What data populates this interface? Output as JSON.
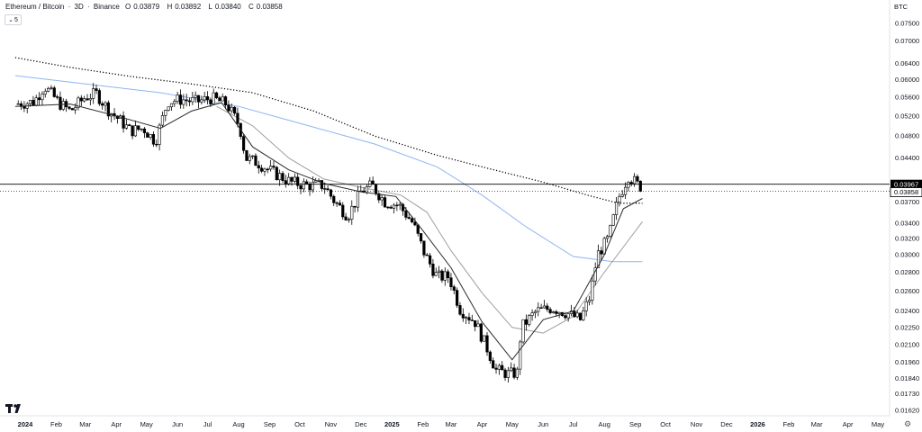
{
  "header": {
    "symbol": "Ethereum / Bitcoin",
    "interval": "3D",
    "exchange": "Binance",
    "open_label": "O",
    "open": "0.03879",
    "high_label": "H",
    "high": "0.03892",
    "low_label": "L",
    "low": "0.03840",
    "close_label": "C",
    "close": "0.03858",
    "dot": "·"
  },
  "indicator_toggle": {
    "icon": "chevron-down-icon",
    "count": "5"
  },
  "currency": "BTC",
  "logo": "TV",
  "colors": {
    "up_candle": "#ffffff",
    "down_candle": "#000000",
    "candle_border": "#000000",
    "ma_short": "#2a2a2a",
    "ma_mid": "#9e9e9e",
    "ma_long_blue": "#90b4f0",
    "ma_dotted": "#000000",
    "price_line": "#000000"
  },
  "chart_data": {
    "type": "candlestick",
    "title": "Ethereum / Bitcoin · 3D · Binance",
    "price_axis": {
      "scale": "log",
      "ylim": [
        0.0162,
        0.081
      ],
      "ticks": [
        "0.07500",
        "0.07000",
        "0.06400",
        "0.06000",
        "0.05600",
        "0.05200",
        "0.04800",
        "0.04400",
        "0.03700",
        "0.03400",
        "0.03200",
        "0.03000",
        "0.02800",
        "0.02600",
        "0.02400",
        "0.02250",
        "0.02100",
        "0.01960",
        "0.01840",
        "0.01730",
        "0.01620"
      ],
      "labels": [
        {
          "text": "0.03967",
          "value": 0.03967,
          "style": "black"
        },
        {
          "text": "0.03858",
          "value": 0.03858,
          "style": "outline"
        }
      ]
    },
    "time_axis": {
      "ticks": [
        {
          "label": "2024",
          "date": "2024-01-01",
          "bold": true
        },
        {
          "label": "Feb",
          "date": "2024-02-01"
        },
        {
          "label": "Mar",
          "date": "2024-03-01"
        },
        {
          "label": "Apr",
          "date": "2024-04-01"
        },
        {
          "label": "May",
          "date": "2024-05-01"
        },
        {
          "label": "Jun",
          "date": "2024-06-01"
        },
        {
          "label": "Jul",
          "date": "2024-07-01"
        },
        {
          "label": "Aug",
          "date": "2024-08-01"
        },
        {
          "label": "Sep",
          "date": "2024-09-01"
        },
        {
          "label": "Oct",
          "date": "2024-10-01"
        },
        {
          "label": "Nov",
          "date": "2024-11-01"
        },
        {
          "label": "Dec",
          "date": "2024-12-01"
        },
        {
          "label": "2025",
          "date": "2025-01-01",
          "bold": true
        },
        {
          "label": "Feb",
          "date": "2025-02-01"
        },
        {
          "label": "Mar",
          "date": "2025-03-01"
        },
        {
          "label": "Apr",
          "date": "2025-04-01"
        },
        {
          "label": "May",
          "date": "2025-05-01"
        },
        {
          "label": "Jun",
          "date": "2025-06-01"
        },
        {
          "label": "Jul",
          "date": "2025-07-01"
        },
        {
          "label": "Aug",
          "date": "2025-08-01"
        },
        {
          "label": "Sep",
          "date": "2025-09-01"
        },
        {
          "label": "Oct",
          "date": "2025-10-01"
        },
        {
          "label": "Nov",
          "date": "2025-11-01"
        },
        {
          "label": "Dec",
          "date": "2025-12-01"
        },
        {
          "label": "2026",
          "date": "2026-01-01",
          "bold": true
        },
        {
          "label": "Feb",
          "date": "2026-02-01"
        },
        {
          "label": "Mar",
          "date": "2026-03-01"
        },
        {
          "label": "Apr",
          "date": "2026-04-01"
        },
        {
          "label": "May",
          "date": "2026-05-01"
        }
      ]
    },
    "close_path": [
      [
        "2023-12-22",
        0.0545
      ],
      [
        "2024-01-10",
        0.055
      ],
      [
        "2024-01-20",
        0.0585
      ],
      [
        "2024-02-05",
        0.0545
      ],
      [
        "2024-02-15",
        0.053
      ],
      [
        "2024-03-01",
        0.056
      ],
      [
        "2024-03-12",
        0.0568
      ],
      [
        "2024-03-25",
        0.053
      ],
      [
        "2024-04-05",
        0.051
      ],
      [
        "2024-04-15",
        0.049
      ],
      [
        "2024-04-28",
        0.0495
      ],
      [
        "2024-05-10",
        0.047
      ],
      [
        "2024-05-22",
        0.055
      ],
      [
        "2024-06-05",
        0.0555
      ],
      [
        "2024-06-20",
        0.055
      ],
      [
        "2024-07-05",
        0.0558
      ],
      [
        "2024-07-20",
        0.0545
      ],
      [
        "2024-08-02",
        0.05
      ],
      [
        "2024-08-08",
        0.044
      ],
      [
        "2024-08-20",
        0.0432
      ],
      [
        "2024-09-05",
        0.0415
      ],
      [
        "2024-09-22",
        0.04
      ],
      [
        "2024-10-08",
        0.0395
      ],
      [
        "2024-10-25",
        0.0395
      ],
      [
        "2024-11-05",
        0.037
      ],
      [
        "2024-11-18",
        0.035
      ],
      [
        "2024-12-01",
        0.0385
      ],
      [
        "2024-12-12",
        0.0395
      ],
      [
        "2024-12-25",
        0.037
      ],
      [
        "2025-01-08",
        0.0365
      ],
      [
        "2025-01-22",
        0.034
      ],
      [
        "2025-02-03",
        0.03
      ],
      [
        "2025-02-15",
        0.0275
      ],
      [
        "2025-02-27",
        0.0275
      ],
      [
        "2025-03-10",
        0.0242
      ],
      [
        "2025-03-25",
        0.023
      ],
      [
        "2025-04-06",
        0.0207
      ],
      [
        "2025-04-15",
        0.019
      ],
      [
        "2025-04-28",
        0.0187
      ],
      [
        "2025-05-06",
        0.0188
      ],
      [
        "2025-05-10",
        0.0225
      ],
      [
        "2025-05-25",
        0.024
      ],
      [
        "2025-06-10",
        0.0243
      ],
      [
        "2025-06-25",
        0.0238
      ],
      [
        "2025-07-08",
        0.0232
      ],
      [
        "2025-07-18",
        0.0255
      ],
      [
        "2025-07-25",
        0.03
      ],
      [
        "2025-08-05",
        0.032
      ],
      [
        "2025-08-15",
        0.0375
      ],
      [
        "2025-08-25",
        0.041
      ],
      [
        "2025-09-04",
        0.0395
      ],
      [
        "2025-09-08",
        0.03858
      ]
    ],
    "ma_dotted": [
      [
        "2023-12-22",
        0.0655
      ],
      [
        "2024-02-15",
        0.063
      ],
      [
        "2024-04-15",
        0.0608
      ],
      [
        "2024-06-15",
        0.059
      ],
      [
        "2024-08-15",
        0.057
      ],
      [
        "2024-10-15",
        0.053
      ],
      [
        "2024-12-15",
        0.048
      ],
      [
        "2025-02-15",
        0.0445
      ],
      [
        "2025-04-01",
        0.0425
      ],
      [
        "2025-06-01",
        0.04
      ],
      [
        "2025-07-15",
        0.038
      ],
      [
        "2025-08-15",
        0.0368
      ],
      [
        "2025-09-08",
        0.0368
      ]
    ],
    "ma_long": [
      [
        "2023-12-22",
        0.061
      ],
      [
        "2024-03-01",
        0.059
      ],
      [
        "2024-05-15",
        0.057
      ],
      [
        "2024-08-01",
        0.054
      ],
      [
        "2024-10-01",
        0.0505
      ],
      [
        "2024-12-15",
        0.0465
      ],
      [
        "2025-02-15",
        0.0425
      ],
      [
        "2025-04-01",
        0.038
      ],
      [
        "2025-05-15",
        0.0335
      ],
      [
        "2025-07-01",
        0.0298
      ],
      [
        "2025-08-10",
        0.0292
      ],
      [
        "2025-09-08",
        0.0292
      ]
    ],
    "ma_mid": [
      [
        "2024-07-10",
        0.054
      ],
      [
        "2024-08-15",
        0.05
      ],
      [
        "2024-09-20",
        0.044
      ],
      [
        "2024-10-25",
        0.0405
      ],
      [
        "2024-12-01",
        0.0392
      ],
      [
        "2025-01-10",
        0.038
      ],
      [
        "2025-02-05",
        0.0355
      ],
      [
        "2025-03-01",
        0.0305
      ],
      [
        "2025-04-01",
        0.0258
      ],
      [
        "2025-05-01",
        0.0225
      ],
      [
        "2025-06-01",
        0.022
      ],
      [
        "2025-07-01",
        0.0235
      ],
      [
        "2025-08-01",
        0.028
      ],
      [
        "2025-09-08",
        0.0342
      ]
    ],
    "ma_short": [
      [
        "2023-12-22",
        0.054
      ],
      [
        "2024-02-15",
        0.0545
      ],
      [
        "2024-04-01",
        0.052
      ],
      [
        "2024-05-15",
        0.0495
      ],
      [
        "2024-06-15",
        0.053
      ],
      [
        "2024-07-15",
        0.0548
      ],
      [
        "2024-08-15",
        0.046
      ],
      [
        "2024-09-20",
        0.042
      ],
      [
        "2024-10-25",
        0.0398
      ],
      [
        "2024-12-01",
        0.0385
      ],
      [
        "2025-01-05",
        0.0378
      ],
      [
        "2025-02-01",
        0.033
      ],
      [
        "2025-03-01",
        0.0285
      ],
      [
        "2025-04-01",
        0.023
      ],
      [
        "2025-05-01",
        0.0198
      ],
      [
        "2025-06-01",
        0.0232
      ],
      [
        "2025-07-01",
        0.024
      ],
      [
        "2025-08-01",
        0.03
      ],
      [
        "2025-08-20",
        0.036
      ],
      [
        "2025-09-08",
        0.0375
      ]
    ]
  }
}
